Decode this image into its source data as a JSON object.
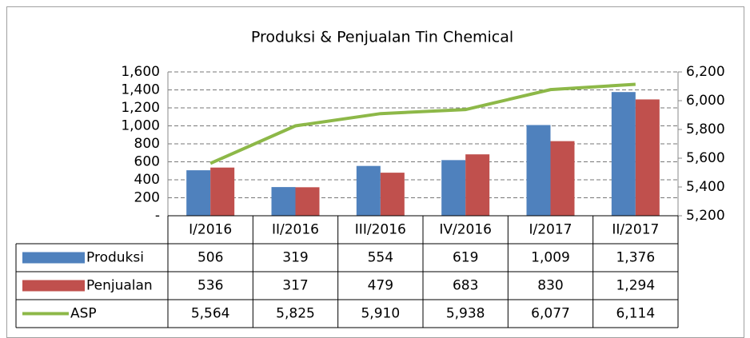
{
  "chart_data": {
    "type": "bar",
    "title": "Produksi & Penjualan Tin Chemical",
    "categories": [
      "I/2016",
      "II/2016",
      "III/2016",
      "IV/2016",
      "I/2017",
      "II/2017"
    ],
    "series": [
      {
        "name": "Produksi",
        "color": "#4f81bd",
        "values": [
          506,
          319,
          554,
          619,
          1009,
          1376
        ],
        "value_labels": [
          "506",
          "319",
          "554",
          "619",
          "1,009",
          "1,376"
        ]
      },
      {
        "name": "Penjualan",
        "color": "#c0504d",
        "values": [
          536,
          317,
          479,
          683,
          830,
          1294
        ],
        "value_labels": [
          "536",
          "317",
          "479",
          "683",
          "830",
          "1,294"
        ]
      },
      {
        "name": "ASP",
        "color": "#8db848",
        "type": "line",
        "axis": "y2",
        "values": [
          5564,
          5825,
          5910,
          5938,
          6077,
          6114
        ],
        "value_labels": [
          "5,564",
          "5,825",
          "5,910",
          "5,938",
          "6,077",
          "6,114"
        ]
      }
    ],
    "ylim": [
      0,
      1600
    ],
    "yticks": [
      {
        "value": 0,
        "label": "-"
      },
      200,
      400,
      600,
      800,
      {
        "value": 1000,
        "label": "1,000"
      },
      {
        "value": 1200,
        "label": "1,200"
      },
      {
        "value": 1400,
        "label": "1,400"
      },
      {
        "value": 1600,
        "label": "1,600"
      }
    ],
    "y2lim": [
      5200,
      6200
    ],
    "y2ticks": [
      {
        "value": 5200,
        "label": "5,200"
      },
      {
        "value": 5400,
        "label": "5,400"
      },
      {
        "value": 5600,
        "label": "5,600"
      },
      {
        "value": 5800,
        "label": "5,800"
      },
      {
        "value": 6000,
        "label": "6,000"
      },
      {
        "value": 6200,
        "label": "6,200"
      }
    ],
    "grid": true
  }
}
